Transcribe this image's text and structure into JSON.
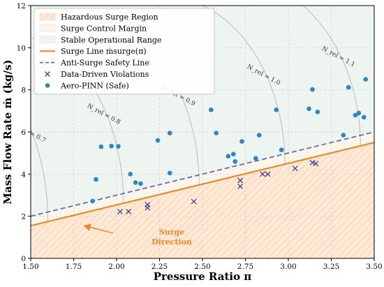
{
  "chart_data": {
    "type": "scatter",
    "xlabel": "Pressure Ratio π",
    "ylabel": "Mass Flow Rate ṁ (kg/s)",
    "xlim": [
      1.5,
      3.5
    ],
    "ylim": [
      0,
      12
    ],
    "xticks": [
      "1.50",
      "1.75",
      "2.00",
      "2.25",
      "2.50",
      "2.75",
      "3.00",
      "3.25",
      "3.50"
    ],
    "yticks": [
      "0",
      "2",
      "4",
      "6",
      "8",
      "10",
      "12"
    ],
    "grid": true,
    "legend_position": "top-left",
    "legend": [
      {
        "label": "Hazardous Surge Region",
        "kind": "hatch-patch"
      },
      {
        "label": "Surge Control Margin",
        "kind": "patch"
      },
      {
        "label": "Stable Operational Range",
        "kind": "patch"
      },
      {
        "label": "Surge Line ṁsurge(π)",
        "kind": "line"
      },
      {
        "label": "Anti-Surge Safety Line",
        "kind": "dashed-line"
      },
      {
        "label": "Data-Driven Violations",
        "kind": "x-marker"
      },
      {
        "label": "Aero-PINN (Safe)",
        "kind": "dot-marker"
      }
    ],
    "colors": {
      "surge_line": "#e8892a",
      "safety_line": "#6b6aa3",
      "violations": "#3f3f8f",
      "safe": "#2b86c2",
      "stable_region": "#eef5f1",
      "hazard_region": "#fde9d6",
      "speed_lines": "#b4b4b4"
    },
    "surge_line": {
      "x": [
        1.5,
        3.5
      ],
      "y": [
        1.55,
        5.5
      ]
    },
    "safety_line": {
      "x": [
        1.5,
        3.5
      ],
      "y": [
        2.0,
        6.0
      ]
    },
    "speed_lines": [
      {
        "label": "N_rel = 0.7",
        "x0": 1.6
      },
      {
        "label": "N_rel = 0.8",
        "x0": 2.04
      },
      {
        "label": "N_rel = 0.9",
        "x0": 2.48
      },
      {
        "label": "N_rel = 1.0",
        "x0": 2.98
      },
      {
        "label": "N_rel = 1.1",
        "x0": 3.42
      }
    ],
    "series": [
      {
        "name": "Data-Driven Violations",
        "marker": "x",
        "points": [
          [
            2.02,
            2.22
          ],
          [
            2.07,
            2.22
          ],
          [
            2.18,
            2.55
          ],
          [
            2.18,
            2.4
          ],
          [
            2.45,
            2.7
          ],
          [
            2.72,
            3.7
          ],
          [
            2.72,
            3.42
          ],
          [
            2.85,
            4.0
          ],
          [
            2.88,
            4.0
          ],
          [
            3.04,
            4.27
          ],
          [
            3.14,
            4.55
          ],
          [
            3.16,
            4.5
          ]
        ]
      },
      {
        "name": "Aero-PINN (Safe)",
        "marker": "o",
        "points": [
          [
            1.86,
            2.72
          ],
          [
            1.88,
            3.75
          ],
          [
            1.91,
            5.3
          ],
          [
            1.97,
            5.33
          ],
          [
            2.01,
            5.32
          ],
          [
            2.08,
            4.0
          ],
          [
            2.11,
            3.6
          ],
          [
            2.14,
            3.55
          ],
          [
            2.24,
            5.6
          ],
          [
            2.31,
            5.95
          ],
          [
            2.31,
            4.05
          ],
          [
            2.55,
            7.05
          ],
          [
            2.58,
            5.95
          ],
          [
            2.65,
            4.85
          ],
          [
            2.68,
            4.95
          ],
          [
            2.69,
            4.6
          ],
          [
            2.73,
            5.55
          ],
          [
            2.81,
            4.75
          ],
          [
            2.83,
            5.85
          ],
          [
            2.93,
            7.05
          ],
          [
            2.96,
            5.15
          ],
          [
            3.12,
            7.1
          ],
          [
            3.14,
            8.02
          ],
          [
            3.17,
            6.95
          ],
          [
            3.32,
            5.85
          ],
          [
            3.35,
            8.12
          ],
          [
            3.39,
            6.8
          ],
          [
            3.41,
            6.9
          ],
          [
            3.44,
            6.7
          ],
          [
            3.45,
            8.5
          ]
        ]
      }
    ],
    "annotation": {
      "text_line1": "Surge",
      "text_line2": "Direction",
      "from": [
        1.98,
        1.2
      ],
      "to": [
        1.81,
        1.55
      ],
      "color": "#e8892a"
    }
  }
}
